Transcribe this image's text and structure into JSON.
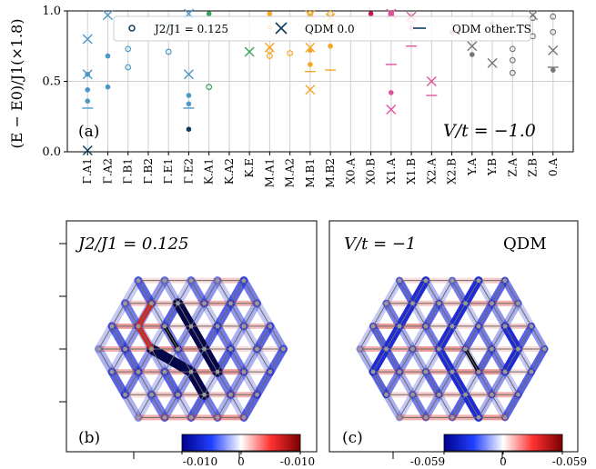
{
  "colors": {
    "gamma": "#4a97c9",
    "gamma_dark": "#0f3a5a",
    "k": "#3aa05a",
    "m": "#f5a623",
    "x0": "#c2185b",
    "x1": "#e0529c",
    "y": "#777777",
    "negative": "#1e2bd6",
    "positive": "#d6231e"
  },
  "chart_data": [
    {
      "type": "scatter",
      "panel": "(a)",
      "ylabel": "(E − E0)/J1(×1.8)",
      "ylim": [
        0,
        1.0
      ],
      "yticks": [
        "0.0",
        "0.5",
        "1.0"
      ],
      "grid": true,
      "legend_position": "top",
      "annotation": "V/t = −1.0",
      "categories": [
        "Γ.A1",
        "Γ.A2",
        "Γ.B1",
        "Γ.B2",
        "Γ.E1",
        "Γ.E2",
        "K.A1",
        "K.A2",
        "K.E",
        "M.A1",
        "M.A2",
        "M.B1",
        "M.B2",
        "X0.A",
        "X0.B",
        "X1.A",
        "X1.B",
        "X2.A",
        "X2.B",
        "Y.A",
        "Y.B",
        "Z.A",
        "Z.B",
        "0.A"
      ],
      "legend": [
        "J2/J1 = 0.125",
        "QDM 0.0",
        "QDM other.TS"
      ],
      "series": [
        {
          "name": "J2/J1 = 0.125",
          "marker": "filled-circle",
          "points": [
            [
              0,
              0.55
            ],
            [
              0,
              0.44
            ],
            [
              0,
              0.36
            ],
            [
              1,
              0.68
            ],
            [
              1,
              0.46
            ],
            [
              5,
              0.4
            ],
            [
              5,
              0.34
            ],
            [
              5,
              0.16
            ],
            [
              6,
              0.98
            ],
            [
              9,
              0.98
            ],
            [
              9,
              0.88
            ],
            [
              11,
              0.72
            ],
            [
              11,
              0.62
            ],
            [
              12,
              0.75
            ],
            [
              14,
              0.98
            ],
            [
              15,
              0.42
            ],
            [
              15,
              0.98
            ],
            [
              16,
              0.88
            ],
            [
              18,
              0.85
            ],
            [
              19,
              0.69
            ],
            [
              19,
              0.86
            ],
            [
              20,
              0.91
            ],
            [
              23,
              0.58
            ]
          ]
        },
        {
          "name": "J2/J1 = 0.125 (open)",
          "marker": "open-circle",
          "points": [
            [
              2,
              0.73
            ],
            [
              2,
              0.6
            ],
            [
              4,
              0.9
            ],
            [
              4,
              0.71
            ],
            [
              6,
              0.46
            ],
            [
              9,
              0.72
            ],
            [
              9,
              0.68
            ],
            [
              10,
              0.7
            ],
            [
              11,
              0.88
            ],
            [
              11,
              0.98
            ],
            [
              12,
              0.88
            ],
            [
              12,
              0.98
            ],
            [
              15,
              0.98
            ],
            [
              16,
              0.94
            ],
            [
              21,
              0.73
            ],
            [
              21,
              0.65
            ],
            [
              21,
              0.56
            ],
            [
              22,
              0.95
            ],
            [
              22,
              0.82
            ],
            [
              23,
              0.96
            ],
            [
              23,
              0.85
            ]
          ]
        },
        {
          "name": "QDM 0.0",
          "marker": "x",
          "points": [
            [
              0,
              0.8
            ],
            [
              0,
              0.55
            ],
            [
              0,
              0.01
            ],
            [
              1,
              0.97
            ],
            [
              5,
              0.98
            ],
            [
              5,
              0.55
            ],
            [
              8,
              0.71
            ],
            [
              9,
              0.74
            ],
            [
              11,
              0.74
            ],
            [
              11,
              0.44
            ],
            [
              11,
              0.97
            ],
            [
              12,
              0.95
            ],
            [
              15,
              0.98
            ],
            [
              15,
              0.3
            ],
            [
              16,
              0.96
            ],
            [
              17,
              0.5
            ],
            [
              19,
              0.75
            ],
            [
              20,
              0.63
            ],
            [
              22,
              0.97
            ],
            [
              23,
              0.72
            ]
          ]
        },
        {
          "name": "QDM other.TS",
          "marker": "dash",
          "points": [
            [
              0,
              0.31
            ],
            [
              5,
              0.31
            ],
            [
              11,
              0.57
            ],
            [
              12,
              0.58
            ],
            [
              15,
              0.62
            ],
            [
              16,
              0.75
            ],
            [
              17,
              0.4
            ],
            [
              23,
              0.6
            ]
          ]
        }
      ]
    },
    {
      "type": "heatmap",
      "panel": "(b)",
      "title": "J2/J1 = 0.125",
      "colorbar_ticks": [
        "-0.010",
        "0",
        "-0.010"
      ]
    },
    {
      "type": "heatmap",
      "panel": "(c)",
      "title": "V/t = −1",
      "title_right": "QDM",
      "colorbar_ticks": [
        "-0.059",
        "0",
        "-0.059"
      ]
    }
  ]
}
